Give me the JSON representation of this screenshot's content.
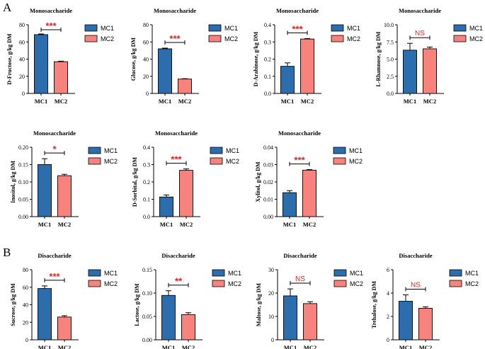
{
  "sections": [
    {
      "id": "A",
      "label": "A"
    },
    {
      "id": "B",
      "label": "B"
    }
  ],
  "colors": {
    "MC1": "#2c6ead",
    "MC2": "#f8837c",
    "sig": "#d62728"
  },
  "legend": [
    "MC1",
    "MC2"
  ],
  "chart_data": [
    {
      "type": "bar",
      "section": "A",
      "title": "Monosaccharide",
      "ylabel": "D-Fructose, g/kg DM",
      "categories": [
        "MC1",
        "MC2"
      ],
      "values": [
        68.5,
        37
      ],
      "errors": [
        0.8,
        0.6
      ],
      "ylim": [
        0,
        80
      ],
      "ticks": [
        "0",
        "20",
        "40",
        "60",
        "80"
      ],
      "significance": "***"
    },
    {
      "type": "bar",
      "section": "A",
      "title": "Monosaccharide",
      "ylabel": "Glucose, g/kg DM",
      "categories": [
        "MC1",
        "MC2"
      ],
      "values": [
        52,
        16.8
      ],
      "errors": [
        0.8,
        0.4
      ],
      "ylim": [
        0,
        80
      ],
      "ticks": [
        "0",
        "20",
        "40",
        "60",
        "80"
      ],
      "significance": "***"
    },
    {
      "type": "bar",
      "section": "A",
      "title": "Monosaccharide",
      "ylabel": "D-Arabinose, g/kg DM",
      "categories": [
        "MC1",
        "MC2"
      ],
      "values": [
        0.158,
        0.317
      ],
      "errors": [
        0.02,
        0.003
      ],
      "ylim": [
        0,
        0.4
      ],
      "ticks": [
        "0.0",
        "0.1",
        "0.2",
        "0.3",
        "0.4"
      ],
      "significance": "***"
    },
    {
      "type": "bar",
      "section": "A",
      "title": "Monosaccharide",
      "ylabel": "L-Rhamnose, g/kg DM",
      "categories": [
        "MC1",
        "MC2"
      ],
      "values": [
        6.3,
        6.5
      ],
      "errors": [
        1.0,
        0.25
      ],
      "ylim": [
        0,
        10
      ],
      "ticks": [
        "0.0",
        "2.5",
        "5.0",
        "7.5",
        "10.0"
      ],
      "significance": "NS"
    },
    {
      "type": "bar",
      "section": "A",
      "title": "Monosaccharide",
      "ylabel": "Inositol, g/kg DM",
      "categories": [
        "MC1",
        "MC2"
      ],
      "values": [
        0.15,
        0.118
      ],
      "errors": [
        0.017,
        0.004
      ],
      "ylim": [
        0,
        0.2
      ],
      "ticks": [
        "0.00",
        "0.05",
        "0.10",
        "0.15",
        "0.20"
      ],
      "significance": "*"
    },
    {
      "type": "bar",
      "section": "A",
      "title": "Monosaccharide",
      "ylabel": "D-Sorbital, g/kg DM",
      "categories": [
        "MC1",
        "MC2"
      ],
      "values": [
        0.113,
        0.267
      ],
      "errors": [
        0.012,
        0.008
      ],
      "ylim": [
        0,
        0.4
      ],
      "ticks": [
        "0.0",
        "0.1",
        "0.2",
        "0.3",
        "0.4"
      ],
      "significance": "***"
    },
    {
      "type": "bar",
      "section": "A",
      "title": "Monosaccharide",
      "ylabel": "Xylitol, g/kg DM",
      "categories": [
        "MC1",
        "MC2"
      ],
      "values": [
        0.0138,
        0.0268
      ],
      "errors": [
        0.0012,
        0.0003
      ],
      "ylim": [
        0,
        0.04
      ],
      "ticks": [
        "0.00",
        "0.01",
        "0.02",
        "0.03",
        "0.04"
      ],
      "significance": "***"
    },
    {
      "type": "bar",
      "section": "B",
      "title": "Disaccharide",
      "ylabel": "Sucrose, g/kg DM",
      "categories": [
        "MC1",
        "MC2"
      ],
      "values": [
        58.5,
        26
      ],
      "errors": [
        3,
        1.5
      ],
      "ylim": [
        0,
        80
      ],
      "ticks": [
        "0",
        "20",
        "40",
        "60",
        "80"
      ],
      "significance": "***"
    },
    {
      "type": "bar",
      "section": "B",
      "title": "Disaccharide",
      "ylabel": "Lactose, g/kg DM",
      "categories": [
        "MC1",
        "MC2"
      ],
      "values": [
        0.095,
        0.054
      ],
      "errors": [
        0.01,
        0.004
      ],
      "ylim": [
        0,
        0.15
      ],
      "ticks": [
        "0.00",
        "0.05",
        "0.10",
        "0.15"
      ],
      "significance": "**"
    },
    {
      "type": "bar",
      "section": "B",
      "title": "Disaccharide",
      "ylabel": "Maltose, g/kg DM",
      "categories": [
        "MC1",
        "MC2"
      ],
      "values": [
        18.8,
        15.5
      ],
      "errors": [
        3,
        0.8
      ],
      "ylim": [
        0,
        30
      ],
      "ticks": [
        "0",
        "10",
        "20",
        "30"
      ],
      "significance": "NS"
    },
    {
      "type": "bar",
      "section": "B",
      "title": "Disaccharide",
      "ylabel": "Trehalose, g/kg DM",
      "categories": [
        "MC1",
        "MC2"
      ],
      "values": [
        3.3,
        2.7
      ],
      "errors": [
        0.55,
        0.12
      ],
      "ylim": [
        0,
        6
      ],
      "ticks": [
        "0",
        "2",
        "4",
        "6"
      ],
      "significance": "NS"
    }
  ]
}
